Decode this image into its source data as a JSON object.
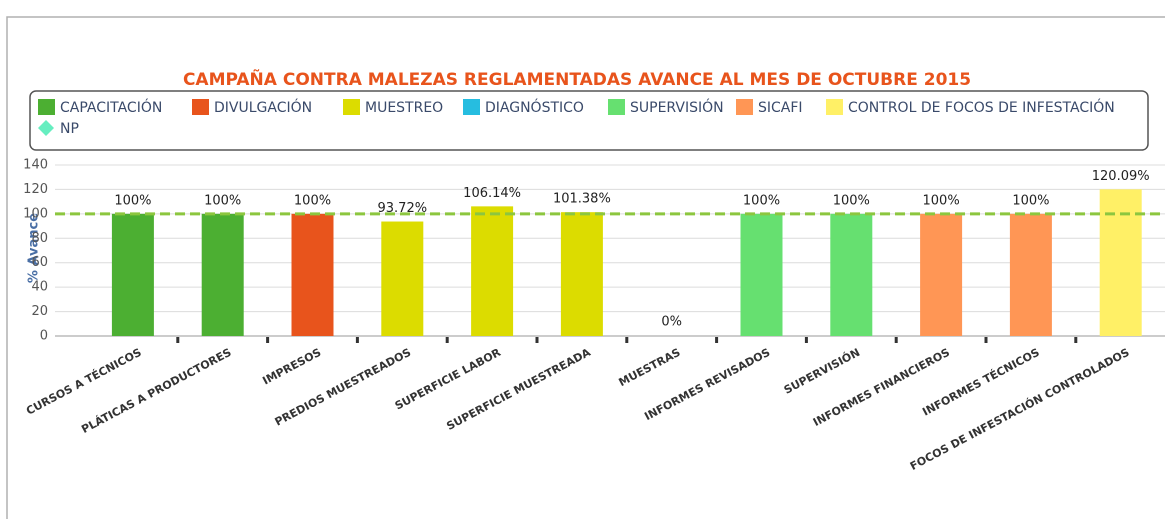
{
  "chart_data": {
    "type": "bar",
    "title": "CAMPAÑA CONTRA MALEZAS REGLAMENTADAS AVANCE AL MES DE OCTUBRE 2015",
    "y_label": "% Avance",
    "categories": [
      "CURSOS A TÉCNICOS",
      "PLÁTICAS A PRODUCTORES",
      "IMPRESOS",
      "PREDIOS MUESTREADOS",
      "SUPERFICIE LABOR",
      "SUPERFICIE MUESTREADA",
      "MUESTRAS",
      "INFORMES REVISADOS",
      "SUPERVISIÓN",
      "INFORMES FINANCIEROS",
      "INFORMES TÉCNICOS",
      "FOCOS DE INFESTACIÓN CONTROLADOS"
    ],
    "series": [
      {
        "name": "CAPACITACIÓN",
        "color": "#4caf32",
        "values": [
          100,
          100,
          null,
          null,
          null,
          null,
          null,
          null,
          null,
          null,
          null,
          null
        ],
        "value_labels": [
          "100%",
          "100%",
          null,
          null,
          null,
          null,
          null,
          null,
          null,
          null,
          null,
          null
        ]
      },
      {
        "name": "DIVULGACIÓN",
        "color": "#e8541c",
        "values": [
          null,
          null,
          100,
          null,
          null,
          null,
          null,
          null,
          null,
          null,
          null,
          null
        ],
        "value_labels": [
          null,
          null,
          "100%",
          null,
          null,
          null,
          null,
          null,
          null,
          null,
          null,
          null
        ]
      },
      {
        "name": "MUESTREO",
        "color": "#dcdc00",
        "values": [
          null,
          null,
          null,
          93.72,
          106.14,
          101.38,
          null,
          null,
          null,
          null,
          null,
          null
        ],
        "value_labels": [
          null,
          null,
          null,
          "93.72%",
          "106.14%",
          "101.38%",
          null,
          null,
          null,
          null,
          null,
          null
        ]
      },
      {
        "name": "DIAGNÓSTICO",
        "color": "#26bde0",
        "values": [
          null,
          null,
          null,
          null,
          null,
          null,
          0,
          null,
          null,
          null,
          null,
          null
        ],
        "value_labels": [
          null,
          null,
          null,
          null,
          null,
          null,
          "0%",
          null,
          null,
          null,
          null,
          null
        ]
      },
      {
        "name": "SUPERVISIÓN",
        "color": "#66e070",
        "values": [
          null,
          null,
          null,
          null,
          null,
          null,
          null,
          100,
          100,
          null,
          null,
          null
        ],
        "value_labels": [
          null,
          null,
          null,
          null,
          null,
          null,
          null,
          "100%",
          "100%",
          null,
          null,
          null
        ]
      },
      {
        "name": "SICAFI",
        "color": "#ff9655",
        "values": [
          null,
          null,
          null,
          null,
          null,
          null,
          null,
          null,
          null,
          100,
          100,
          null
        ],
        "value_labels": [
          null,
          null,
          null,
          null,
          null,
          null,
          null,
          null,
          null,
          "100%",
          "100%",
          null
        ]
      },
      {
        "name": "CONTROL DE FOCOS DE INFESTACIÓN",
        "color": "#fff066",
        "values": [
          null,
          null,
          null,
          null,
          null,
          null,
          null,
          null,
          null,
          null,
          null,
          120.09
        ],
        "value_labels": [
          null,
          null,
          null,
          null,
          null,
          null,
          null,
          null,
          null,
          null,
          null,
          "120.09%"
        ]
      },
      {
        "name": "NP",
        "color": "#66eec0",
        "marker": "diamond",
        "values": [
          null,
          null,
          null,
          null,
          null,
          null,
          null,
          null,
          null,
          null,
          null,
          null
        ]
      }
    ],
    "reference_line": {
      "value": 100,
      "color": "#8cc63f"
    },
    "ylim": [
      0,
      140
    ],
    "yticks": [
      0,
      20,
      40,
      60,
      80,
      100,
      120,
      140
    ],
    "grid": true
  }
}
